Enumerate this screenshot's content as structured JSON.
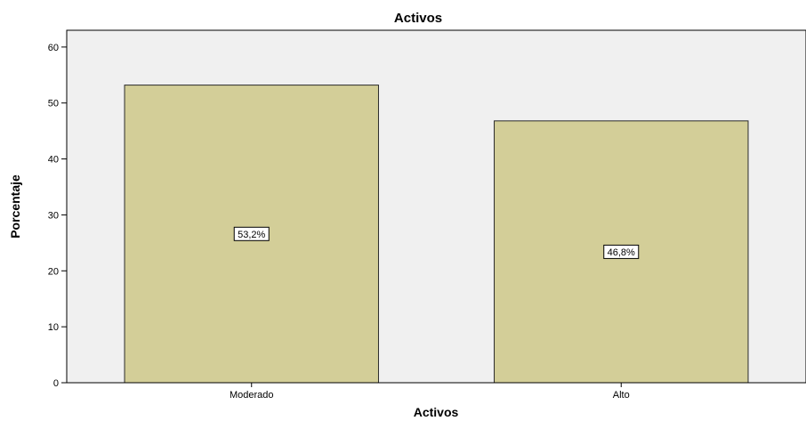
{
  "chart_data": {
    "type": "bar",
    "title": "Activos",
    "xlabel": "Activos",
    "ylabel": "Porcentaje",
    "categories": [
      "Moderado",
      "Alto"
    ],
    "values": [
      53.2,
      46.8
    ],
    "data_labels": [
      "53,2%",
      "46,8%"
    ],
    "ylim": [
      0,
      63
    ],
    "yticks": [
      0,
      10,
      20,
      30,
      40,
      50,
      60
    ],
    "grid": false,
    "legend": "none",
    "colors": {
      "bar_fill": "#d3ce98",
      "bar_stroke": "#2a2a2a",
      "plot_background": "#f0f0f0"
    }
  }
}
